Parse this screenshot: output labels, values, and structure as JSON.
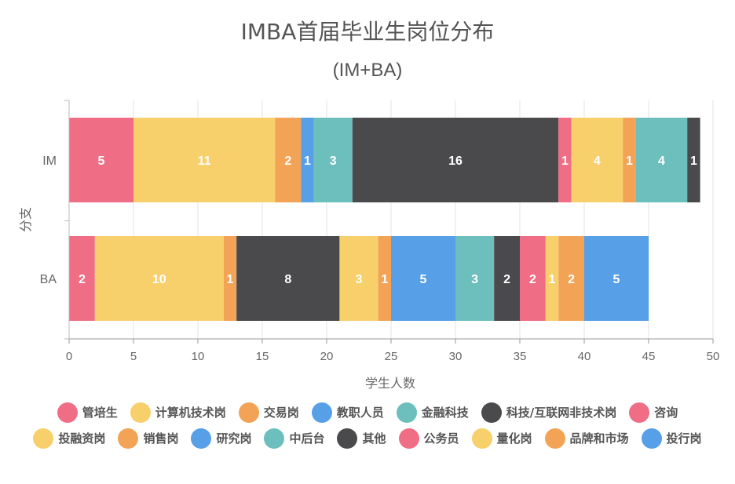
{
  "chart_data": {
    "type": "bar",
    "orientation": "horizontal",
    "stacked": true,
    "title": "IMBA首届毕业生岗位分布",
    "subtitle": "(IM+BA)",
    "xlabel": "学生人数",
    "ylabel": "分支",
    "xlim": [
      0,
      50
    ],
    "x_ticks": [
      0,
      5,
      10,
      15,
      20,
      25,
      30,
      35,
      40,
      45,
      50
    ],
    "grid": true,
    "legend_position": "bottom",
    "categories": [
      "IM",
      "BA"
    ],
    "series": [
      {
        "name": "管培生",
        "color": "#ef6e85",
        "values": [
          5,
          0
        ]
      },
      {
        "name": "计算机技术岗",
        "color": "#f7cf6b",
        "values": [
          11,
          0
        ]
      },
      {
        "name": "交易岗",
        "color": "#f2a356",
        "values": [
          2,
          0
        ]
      },
      {
        "name": "教职人员",
        "color": "#579fe6",
        "values": [
          1,
          0
        ]
      },
      {
        "name": "金融科技",
        "color": "#6cbfbc",
        "values": [
          3,
          0
        ]
      },
      {
        "name": "科技/互联网非技术岗",
        "color": "#4a4a4d",
        "values": [
          16,
          0
        ]
      },
      {
        "name": "咨询",
        "color": "#ef6e85",
        "values": [
          1,
          2
        ]
      },
      {
        "name": "投融资岗",
        "color": "#f7cf6b",
        "values": [
          4,
          10
        ]
      },
      {
        "name": "销售岗",
        "color": "#f2a356",
        "values": [
          1,
          1
        ]
      },
      {
        "name": "研究岗",
        "color": "#579fe6",
        "values": [
          0,
          0
        ]
      },
      {
        "name": "中后台",
        "color": "#6cbfbc",
        "values": [
          4,
          0
        ]
      },
      {
        "name": "其他",
        "color": "#4a4a4d",
        "values": [
          1,
          8
        ]
      },
      {
        "name": "公务员",
        "color": "#ef6e85",
        "values": [
          0,
          0
        ]
      },
      {
        "name": "量化岗",
        "color": "#f7cf6b",
        "values": [
          0,
          3
        ]
      },
      {
        "name": "品牌和市场",
        "color": "#f2a356",
        "values": [
          0,
          1
        ]
      },
      {
        "name": "投行岗",
        "color": "#579fe6",
        "values": [
          0,
          5
        ]
      },
      {
        "name": "",
        "color": "#6cbfbc",
        "values": [
          0,
          3
        ]
      },
      {
        "name": "",
        "color": "#4a4a4d",
        "values": [
          0,
          2
        ]
      },
      {
        "name": "",
        "color": "#ef6e85",
        "values": [
          0,
          2
        ]
      },
      {
        "name": "",
        "color": "#f7cf6b",
        "values": [
          0,
          1
        ]
      },
      {
        "name": "",
        "color": "#f2a356",
        "values": [
          0,
          2
        ]
      },
      {
        "name": "",
        "color": "#579fe6",
        "values": [
          0,
          5
        ]
      }
    ],
    "legend": [
      {
        "name": "管培生",
        "color": "#ef6e85"
      },
      {
        "name": "计算机技术岗",
        "color": "#f7cf6b"
      },
      {
        "name": "交易岗",
        "color": "#f2a356"
      },
      {
        "name": "教职人员",
        "color": "#579fe6"
      },
      {
        "name": "金融科技",
        "color": "#6cbfbc"
      },
      {
        "name": "科技/互联网非技术岗",
        "color": "#4a4a4d"
      },
      {
        "name": "咨询",
        "color": "#ef6e85"
      },
      {
        "name": "投融资岗",
        "color": "#f7cf6b"
      },
      {
        "name": "销售岗",
        "color": "#f2a356"
      },
      {
        "name": "研究岗",
        "color": "#579fe6"
      },
      {
        "name": "中后台",
        "color": "#6cbfbc"
      },
      {
        "name": "其他",
        "color": "#4a4a4d"
      },
      {
        "name": "公务员",
        "color": "#ef6e85"
      },
      {
        "name": "量化岗",
        "color": "#f7cf6b"
      },
      {
        "name": "品牌和市场",
        "color": "#f2a356"
      },
      {
        "name": "投行岗",
        "color": "#579fe6"
      }
    ]
  }
}
